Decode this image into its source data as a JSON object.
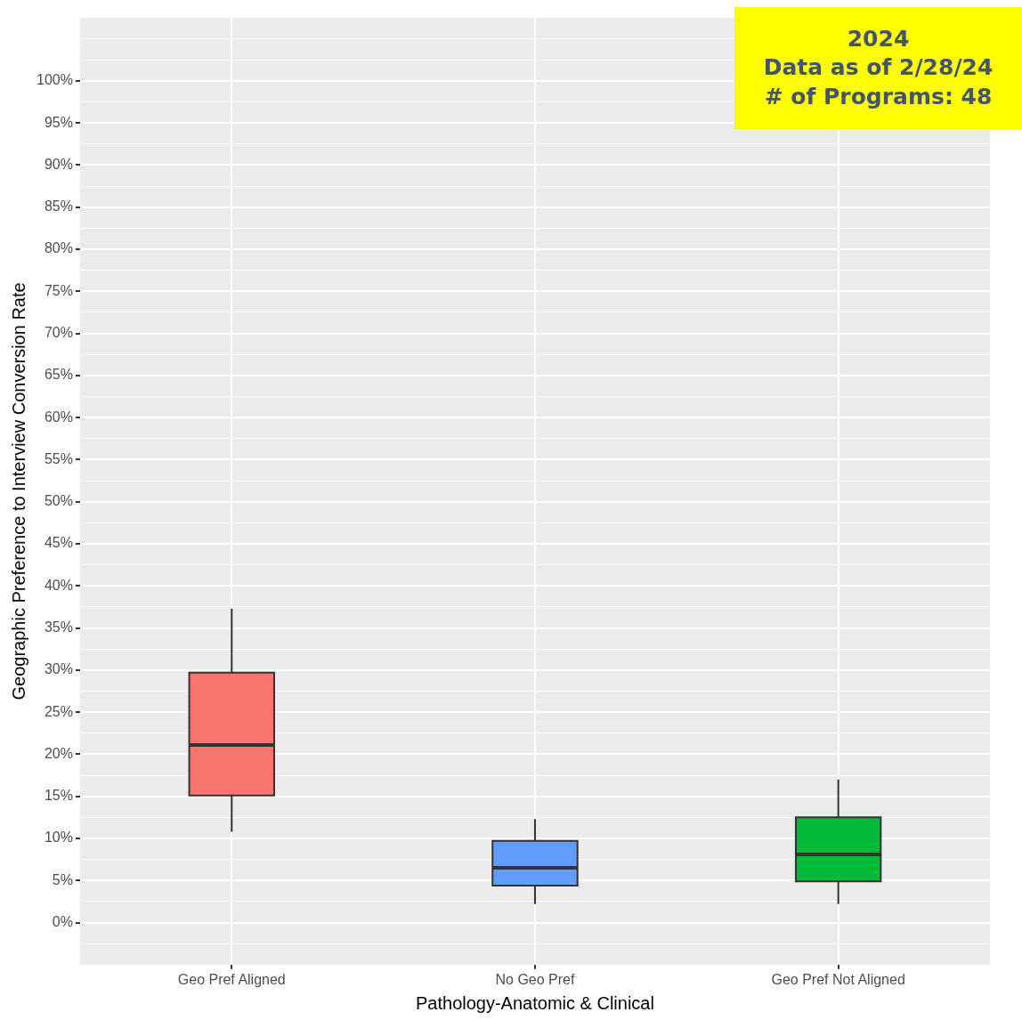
{
  "chart_data": {
    "type": "box",
    "categories": [
      "Geo Pref Aligned",
      "No Geo Pref",
      "Geo Pref Not Aligned"
    ],
    "colors": [
      "#f8766d",
      "#619cff",
      "#00ba38"
    ],
    "boxes": [
      {
        "low": 10.8,
        "q1": 15.1,
        "median": 21.1,
        "q3": 29.7,
        "high": 37.3
      },
      {
        "low": 2.2,
        "q1": 4.4,
        "median": 6.5,
        "q3": 9.7,
        "high": 12.3
      },
      {
        "low": 2.2,
        "q1": 4.9,
        "median": 8.1,
        "q3": 12.5,
        "high": 17.0
      }
    ],
    "xlabel": "Pathology-Anatomic & Clinical",
    "ylabel": "Geographic Preference to Interview Conversion Rate",
    "ylim": [
      -5,
      107.5
    ],
    "yticks": [
      {
        "value": -2.5,
        "label": null
      },
      {
        "value": 0,
        "label": "0%"
      },
      {
        "value": 2.5,
        "label": null
      },
      {
        "value": 5,
        "label": "5%"
      },
      {
        "value": 7.5,
        "label": null
      },
      {
        "value": 10,
        "label": "10%"
      },
      {
        "value": 12.5,
        "label": null
      },
      {
        "value": 15,
        "label": "15%"
      },
      {
        "value": 17.5,
        "label": null
      },
      {
        "value": 20,
        "label": "20%"
      },
      {
        "value": 22.5,
        "label": null
      },
      {
        "value": 25,
        "label": "25%"
      },
      {
        "value": 27.5,
        "label": null
      },
      {
        "value": 30,
        "label": "30%"
      },
      {
        "value": 32.5,
        "label": null
      },
      {
        "value": 35,
        "label": "35%"
      },
      {
        "value": 37.5,
        "label": null
      },
      {
        "value": 40,
        "label": "40%"
      },
      {
        "value": 42.5,
        "label": null
      },
      {
        "value": 45,
        "label": "45%"
      },
      {
        "value": 47.5,
        "label": null
      },
      {
        "value": 50,
        "label": "50%"
      },
      {
        "value": 52.5,
        "label": null
      },
      {
        "value": 55,
        "label": "55%"
      },
      {
        "value": 57.5,
        "label": null
      },
      {
        "value": 60,
        "label": "60%"
      },
      {
        "value": 62.5,
        "label": null
      },
      {
        "value": 65,
        "label": "65%"
      },
      {
        "value": 67.5,
        "label": null
      },
      {
        "value": 70,
        "label": "70%"
      },
      {
        "value": 72.5,
        "label": null
      },
      {
        "value": 75,
        "label": "75%"
      },
      {
        "value": 77.5,
        "label": null
      },
      {
        "value": 80,
        "label": "80%"
      },
      {
        "value": 82.5,
        "label": null
      },
      {
        "value": 85,
        "label": "85%"
      },
      {
        "value": 87.5,
        "label": null
      },
      {
        "value": 90,
        "label": "90%"
      },
      {
        "value": 92.5,
        "label": null
      },
      {
        "value": 95,
        "label": "95%"
      },
      {
        "value": 97.5,
        "label": null
      },
      {
        "value": 100,
        "label": "100%"
      },
      {
        "value": 102.5,
        "label": null
      },
      {
        "value": 105,
        "label": null
      }
    ],
    "grid": true,
    "legend": false,
    "annotations": [
      "2024",
      "Data as of 2/28/24",
      "# of Programs: 48"
    ]
  }
}
